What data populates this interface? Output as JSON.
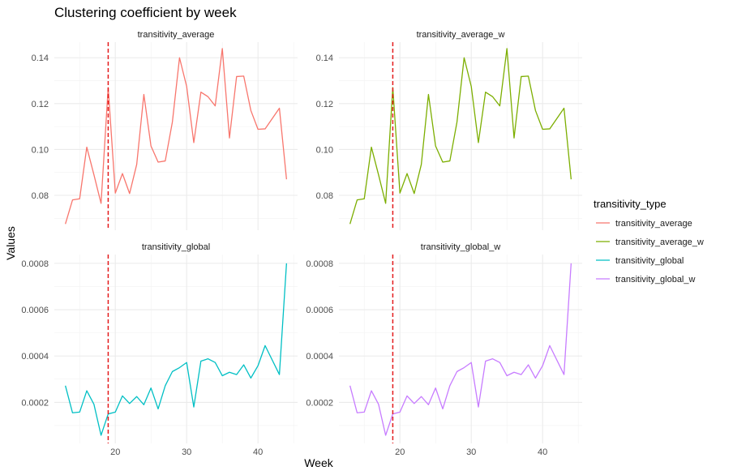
{
  "chart_data": {
    "type": "line",
    "title": "Clustering coefficient by week",
    "xlabel": "Week",
    "ylabel": "Values",
    "legend_title": "transitivity_type",
    "legend_position": "right",
    "grid": true,
    "vline": {
      "x": 19,
      "color": "#e41a1c",
      "style": "dashed"
    },
    "x": [
      13,
      14,
      15,
      16,
      17,
      18,
      19,
      20,
      21,
      22,
      23,
      24,
      25,
      26,
      27,
      28,
      29,
      30,
      31,
      32,
      33,
      34,
      35,
      36,
      37,
      38,
      39,
      40,
      41,
      43,
      44
    ],
    "xlim": [
      11.45,
      45.55
    ],
    "xticks": [
      20,
      30,
      40
    ],
    "panels": [
      {
        "name": "transitivity_average",
        "color": "#F8766D",
        "ylim": [
          0.0648,
          0.1468
        ],
        "yticks": [
          0.08,
          0.1,
          0.12,
          0.14
        ],
        "ytick_labels": [
          "0.08",
          "0.10",
          "0.12",
          "0.14"
        ],
        "values": [
          0.0675,
          0.078,
          0.0785,
          0.101,
          0.089,
          0.0765,
          0.127,
          0.081,
          0.0895,
          0.0808,
          0.0935,
          0.124,
          0.1015,
          0.0945,
          0.095,
          0.112,
          0.14,
          0.1275,
          0.103,
          0.125,
          0.123,
          0.119,
          0.144,
          0.105,
          0.1318,
          0.132,
          0.117,
          0.1088,
          0.109,
          0.118,
          0.087
        ]
      },
      {
        "name": "transitivity_average_w",
        "color": "#7CAE00",
        "ylim": [
          0.0648,
          0.1468
        ],
        "yticks": [
          0.08,
          0.1,
          0.12,
          0.14
        ],
        "ytick_labels": [
          "0.08",
          "0.10",
          "0.12",
          "0.14"
        ],
        "values": [
          0.0675,
          0.078,
          0.0785,
          0.101,
          0.089,
          0.0765,
          0.127,
          0.081,
          0.0895,
          0.0808,
          0.0935,
          0.124,
          0.1015,
          0.0945,
          0.095,
          0.112,
          0.14,
          0.1275,
          0.103,
          0.125,
          0.123,
          0.119,
          0.144,
          0.105,
          0.1318,
          0.132,
          0.117,
          0.1088,
          0.109,
          0.118,
          0.087
        ]
      },
      {
        "name": "transitivity_global",
        "color": "#00BFC4",
        "ylim": [
          2.3e-05,
          0.000838
        ],
        "yticks": [
          0.0002,
          0.0004,
          0.0006,
          0.0008
        ],
        "ytick_labels": [
          "0.0002",
          "0.0004",
          "0.0006",
          "0.0008"
        ],
        "values": [
          0.000272,
          0.000155,
          0.000158,
          0.00025,
          0.000192,
          5.8e-05,
          0.00015,
          0.000158,
          0.000228,
          0.000195,
          0.000225,
          0.00019,
          0.000262,
          0.000172,
          0.000272,
          0.000333,
          0.00035,
          0.000372,
          0.00018,
          0.000378,
          0.000388,
          0.000372,
          0.000315,
          0.00033,
          0.00032,
          0.000362,
          0.000305,
          0.000358,
          0.000445,
          0.00032,
          0.0008
        ]
      },
      {
        "name": "transitivity_global_w",
        "color": "#C77CFF",
        "ylim": [
          2.3e-05,
          0.000838
        ],
        "yticks": [
          0.0002,
          0.0004,
          0.0006,
          0.0008
        ],
        "ytick_labels": [
          "0.0002",
          "0.0004",
          "0.0006",
          "0.0008"
        ],
        "values": [
          0.000272,
          0.000155,
          0.000158,
          0.00025,
          0.000192,
          5.8e-05,
          0.00015,
          0.000158,
          0.000228,
          0.000195,
          0.000225,
          0.00019,
          0.000262,
          0.000172,
          0.000272,
          0.000333,
          0.00035,
          0.000372,
          0.00018,
          0.000378,
          0.000388,
          0.000372,
          0.000315,
          0.00033,
          0.00032,
          0.000362,
          0.000305,
          0.000358,
          0.000445,
          0.00032,
          0.0008
        ]
      }
    ]
  }
}
